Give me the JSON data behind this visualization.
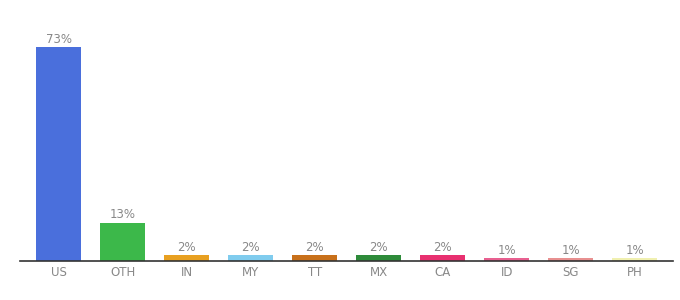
{
  "categories": [
    "US",
    "OTH",
    "IN",
    "MY",
    "TT",
    "MX",
    "CA",
    "ID",
    "SG",
    "PH"
  ],
  "values": [
    73,
    13,
    2,
    2,
    2,
    2,
    2,
    1,
    1,
    1
  ],
  "bar_colors": [
    "#4a6fdc",
    "#3cb84a",
    "#e8a020",
    "#80ccee",
    "#c8701a",
    "#2e8b3a",
    "#e83070",
    "#e86090",
    "#e89090",
    "#f0f0b0"
  ],
  "background_color": "#ffffff",
  "label_fontsize": 8.5,
  "tick_fontsize": 8.5,
  "ylim": [
    0,
    82
  ],
  "bar_width": 0.7
}
